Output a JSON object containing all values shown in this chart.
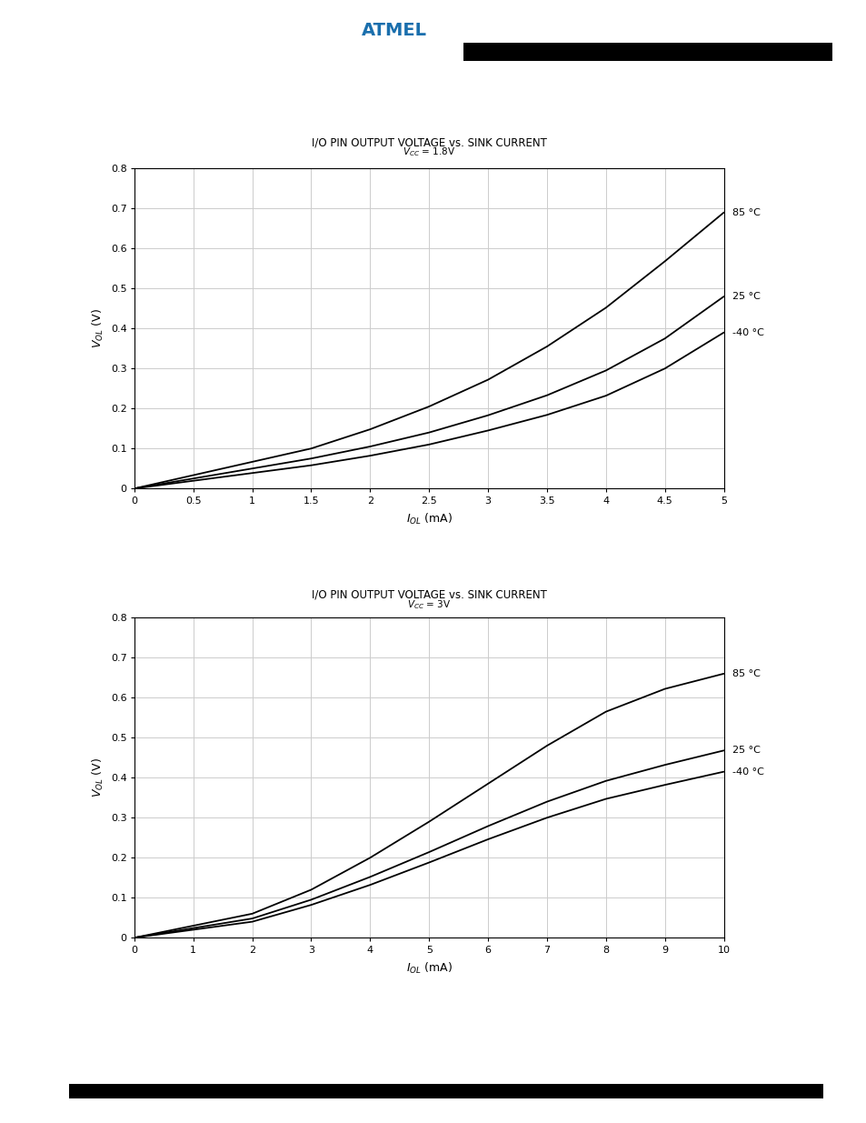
{
  "chart1": {
    "title": "I/O PIN OUTPUT VOLTAGE vs. SINK CURRENT",
    "subtitle": "V_CC = 1.8V",
    "xlim": [
      0,
      5
    ],
    "ylim": [
      0,
      0.8
    ],
    "xticks": [
      0,
      0.5,
      1,
      1.5,
      2,
      2.5,
      3,
      3.5,
      4,
      4.5,
      5
    ],
    "yticks": [
      0,
      0.1,
      0.2,
      0.3,
      0.4,
      0.5,
      0.6,
      0.7,
      0.8
    ],
    "xlabel": "I_OL (mA)",
    "ylabel": "V_OL (V)",
    "curves": [
      {
        "label": "85 °C",
        "x": [
          0,
          1.5,
          2.0,
          2.5,
          3.0,
          3.5,
          4.0,
          4.5,
          5.0
        ],
        "y": [
          0,
          0.1,
          0.148,
          0.205,
          0.272,
          0.355,
          0.452,
          0.568,
          0.69
        ]
      },
      {
        "label": "25 °C",
        "x": [
          0,
          1.5,
          2.0,
          2.5,
          3.0,
          3.5,
          4.0,
          4.5,
          5.0
        ],
        "y": [
          0,
          0.075,
          0.105,
          0.14,
          0.183,
          0.233,
          0.295,
          0.375,
          0.48
        ]
      },
      {
        "label": "-40 °C",
        "x": [
          0,
          1.5,
          2.0,
          2.5,
          3.0,
          3.5,
          4.0,
          4.5,
          5.0
        ],
        "y": [
          0,
          0.058,
          0.082,
          0.11,
          0.145,
          0.184,
          0.232,
          0.3,
          0.39
        ]
      }
    ]
  },
  "chart2": {
    "title": "I/O PIN OUTPUT VOLTAGE vs. SINK CURRENT",
    "subtitle": "V_CC = 3V",
    "xlim": [
      0,
      10
    ],
    "ylim": [
      0,
      0.8
    ],
    "xticks": [
      0,
      1,
      2,
      3,
      4,
      5,
      6,
      7,
      8,
      9,
      10
    ],
    "yticks": [
      0,
      0.1,
      0.2,
      0.3,
      0.4,
      0.5,
      0.6,
      0.7,
      0.8
    ],
    "xlabel": "I_OL (mA)",
    "ylabel": "V_OL (V)",
    "curves": [
      {
        "label": "85 °C",
        "x": [
          0,
          2,
          3,
          4,
          5,
          6,
          7,
          8,
          9,
          10
        ],
        "y": [
          0,
          0.06,
          0.12,
          0.2,
          0.29,
          0.385,
          0.48,
          0.565,
          0.622,
          0.66
        ]
      },
      {
        "label": "25 °C",
        "x": [
          0,
          2,
          3,
          4,
          5,
          6,
          7,
          8,
          9,
          10
        ],
        "y": [
          0,
          0.048,
          0.095,
          0.152,
          0.214,
          0.279,
          0.34,
          0.392,
          0.432,
          0.468
        ]
      },
      {
        "label": "-40 °C",
        "x": [
          0,
          2,
          3,
          4,
          5,
          6,
          7,
          8,
          9,
          10
        ],
        "y": [
          0,
          0.04,
          0.082,
          0.132,
          0.188,
          0.246,
          0.3,
          0.347,
          0.382,
          0.415
        ]
      }
    ]
  },
  "bg_color": "#ffffff",
  "line_color": "#000000",
  "grid_color": "#cccccc",
  "title_fontsize": 8.5,
  "subtitle_fontsize": 7.5,
  "axis_label_fontsize": 9,
  "tick_fontsize": 8,
  "annot_fontsize": 8,
  "line_width": 1.3
}
